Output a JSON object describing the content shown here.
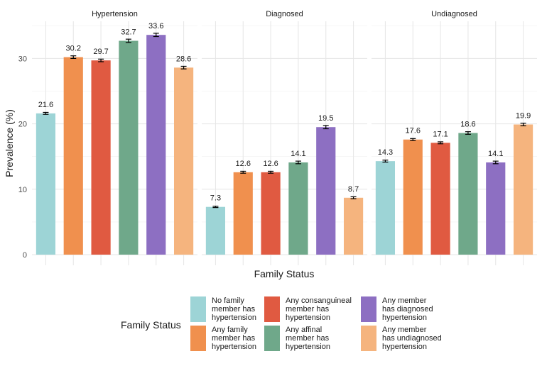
{
  "chart_data": {
    "type": "bar",
    "xlabel": "Family Status",
    "ylabel": "Prevalence (%)",
    "ylim": [
      0,
      35
    ],
    "yticks": [
      0,
      10,
      20,
      30
    ],
    "grid": true,
    "legend_position": "bottom",
    "legend_title": "Family Status",
    "categories": [
      "No family member has hypertension",
      "Any family member has hypertension",
      "Any consanguineal member has hypertension",
      "Any affinal member has hypertension",
      "Any member has diagnosed hypertension",
      "Any member has undiagnosed hypertension"
    ],
    "legend_lines": [
      [
        "No family",
        "member has",
        "hypertension"
      ],
      [
        "Any family",
        "member has",
        "hypertension"
      ],
      [
        "Any consanguineal",
        "member has",
        "hypertension"
      ],
      [
        "Any affinal",
        "member has",
        "hypertension"
      ],
      [
        "Any member",
        "has diagnosed",
        "hypertension"
      ],
      [
        "Any member",
        "has undiagnosed",
        "hypertension"
      ]
    ],
    "colors": [
      "#9DD4D6",
      "#F0904E",
      "#E05A41",
      "#6FA88A",
      "#8D6FC2",
      "#F5B47E"
    ],
    "panels": [
      {
        "title": "Hypertension",
        "values": [
          21.6,
          30.2,
          29.7,
          32.7,
          33.6,
          28.6
        ],
        "errors": [
          0.15,
          0.2,
          0.2,
          0.25,
          0.25,
          0.2
        ]
      },
      {
        "title": "Diagnosed",
        "values": [
          7.3,
          12.6,
          12.6,
          14.1,
          19.5,
          8.7
        ],
        "errors": [
          0.1,
          0.15,
          0.15,
          0.2,
          0.25,
          0.15
        ]
      },
      {
        "title": "Undiagnosed",
        "values": [
          14.3,
          17.6,
          17.1,
          18.6,
          14.1,
          19.9
        ],
        "errors": [
          0.15,
          0.15,
          0.15,
          0.2,
          0.2,
          0.2
        ]
      }
    ]
  }
}
